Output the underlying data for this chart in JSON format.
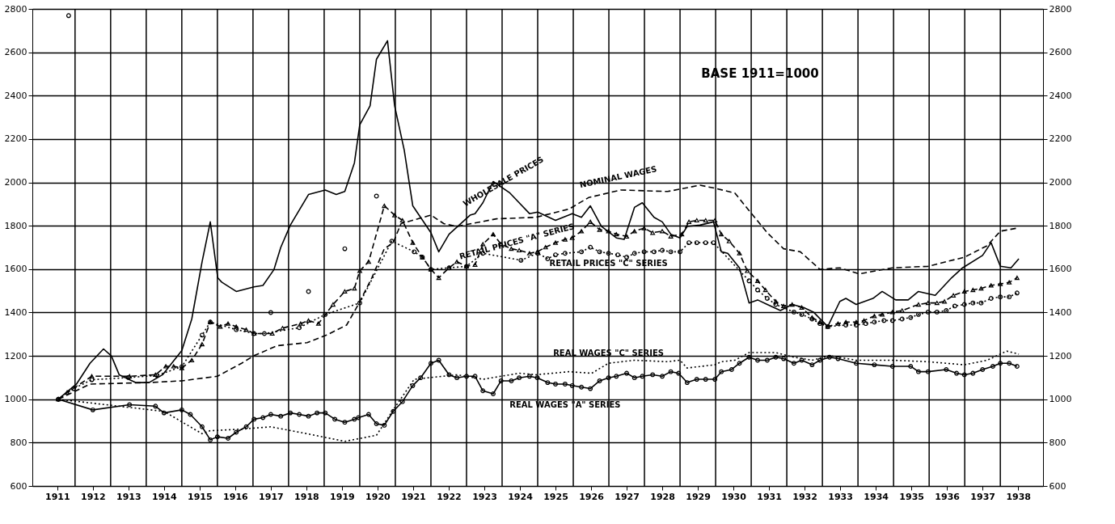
{
  "chart_data": {
    "type": "line",
    "xlim": [
      1910.8,
      1939.2
    ],
    "xticks": [
      {
        "value": 1911.5,
        "label": "1911"
      },
      {
        "value": 1912.5,
        "label": "1912"
      },
      {
        "value": 1913.5,
        "label": "1913"
      },
      {
        "value": 1914.5,
        "label": "1914"
      },
      {
        "value": 1915.5,
        "label": "1915"
      },
      {
        "value": 1916.5,
        "label": "1916"
      },
      {
        "value": 1917.5,
        "label": "1917"
      },
      {
        "value": 1918.5,
        "label": "1918"
      },
      {
        "value": 1919.5,
        "label": "1919"
      },
      {
        "value": 1920.5,
        "label": "1920"
      },
      {
        "value": 1921.5,
        "label": "1921"
      },
      {
        "value": 1922.5,
        "label": "1922"
      },
      {
        "value": 1923.5,
        "label": "1923"
      },
      {
        "value": 1924.5,
        "label": "1924"
      },
      {
        "value": 1925.5,
        "label": "1925"
      },
      {
        "value": 1926.5,
        "label": "1926"
      },
      {
        "value": 1927.5,
        "label": "1927"
      },
      {
        "value": 1928.5,
        "label": "1928"
      },
      {
        "value": 1929.5,
        "label": "1929"
      },
      {
        "value": 1930.5,
        "label": "1930"
      },
      {
        "value": 1931.5,
        "label": "1931"
      },
      {
        "value": 1932.5,
        "label": "1932"
      },
      {
        "value": 1933.5,
        "label": "1933"
      },
      {
        "value": 1934.5,
        "label": "1934"
      },
      {
        "value": 1935.5,
        "label": "1935"
      },
      {
        "value": 1936.5,
        "label": "1936"
      },
      {
        "value": 1937.5,
        "label": "1937"
      },
      {
        "value": 1938.5,
        "label": "1938"
      },
      {
        "value": 1912,
        "label": null
      },
      {
        "value": 1913,
        "label": null
      },
      {
        "value": 1914,
        "label": null
      },
      {
        "value": 1915,
        "label": null
      },
      {
        "value": 1916,
        "label": null
      },
      {
        "value": 1917,
        "label": null
      },
      {
        "value": 1918,
        "label": null
      },
      {
        "value": 1919,
        "label": null
      },
      {
        "value": 1920,
        "label": null
      },
      {
        "value": 1921,
        "label": null
      },
      {
        "value": 1922,
        "label": null
      },
      {
        "value": 1923,
        "label": null
      },
      {
        "value": 1924,
        "label": null
      },
      {
        "value": 1925,
        "label": null
      },
      {
        "value": 1926,
        "label": null
      },
      {
        "value": 1927,
        "label": null
      },
      {
        "value": 1928,
        "label": null
      },
      {
        "value": 1929,
        "label": null
      },
      {
        "value": 1930,
        "label": null
      },
      {
        "value": 1931,
        "label": null
      },
      {
        "value": 1932,
        "label": null
      },
      {
        "value": 1933,
        "label": null
      },
      {
        "value": 1934,
        "label": null
      },
      {
        "value": 1935,
        "label": null
      },
      {
        "value": 1936,
        "label": null
      },
      {
        "value": 1937,
        "label": null
      },
      {
        "value": 1938,
        "label": null
      }
    ],
    "ylim": [
      600,
      2800
    ],
    "yticks": [
      600,
      800,
      1000,
      1200,
      1400,
      1600,
      1800,
      2000,
      2200,
      2400,
      2600,
      2800
    ],
    "y2lim": [
      600,
      2800
    ],
    "y2ticks": [
      600,
      800,
      1000,
      1200,
      1400,
      1600,
      1800,
      2000,
      2200,
      2400,
      2600,
      2800
    ],
    "grid": true,
    "annotations": [
      "BASE 1911=1000"
    ],
    "series": [
      {
        "name": "WHOLESALE PRICES",
        "color": "#000000",
        "line_style": "solid",
        "marker": "none",
        "x": [
          1911.53,
          1912.04,
          1912.42,
          1912.8,
          1913.02,
          1913.24,
          1913.7,
          1914.08,
          1914.46,
          1915.0,
          1915.28,
          1915.57,
          1915.8,
          1916.01,
          1916.12,
          1916.53,
          1917.03,
          1917.28,
          1917.59,
          1917.78,
          1918.05,
          1918.56,
          1919.03,
          1919.34,
          1919.58,
          1919.85,
          1920.0,
          1920.29,
          1920.47,
          1920.78,
          1920.98,
          1921.25,
          1921.49,
          1922.0,
          1922.22,
          1922.51,
          1923.1,
          1923.24,
          1923.46,
          1923.75,
          1924.22,
          1924.77,
          1925.0,
          1925.5,
          1925.97,
          1926.23,
          1926.48,
          1926.79,
          1927.21,
          1927.43,
          1927.72,
          1927.94,
          1928.27,
          1928.5,
          1928.74,
          1929.0,
          1929.2,
          1929.56,
          1929.94,
          1930.16,
          1930.34,
          1930.67,
          1930.94,
          1931.18,
          1931.45,
          1931.82,
          1932.15,
          1932.47,
          1932.75,
          1933.15,
          1933.49,
          1933.66,
          1933.95,
          1934.42,
          1934.68,
          1935.06,
          1935.41,
          1935.7,
          1936.17,
          1936.63,
          1936.94,
          1937.5,
          1937.74,
          1938.0,
          1938.3,
          1938.52
        ],
        "values": [
          1000,
          1070,
          1166,
          1232,
          1200,
          1113,
          1077,
          1077,
          1113,
          1225,
          1370,
          1634,
          1818,
          1560,
          1540,
          1497,
          1518,
          1525,
          1598,
          1700,
          1803,
          1944,
          1965,
          1944,
          1958,
          2090,
          2265,
          2353,
          2568,
          2653,
          2353,
          2149,
          1892,
          1768,
          1680,
          1761,
          1849,
          1856,
          1906,
          2004,
          1951,
          1856,
          1863,
          1825,
          1856,
          1839,
          1892,
          1797,
          1744,
          1737,
          1885,
          1906,
          1839,
          1818,
          1761,
          1744,
          1797,
          1803,
          1818,
          1680,
          1673,
          1606,
          1444,
          1458,
          1437,
          1409,
          1437,
          1423,
          1402,
          1335,
          1451,
          1465,
          1437,
          1465,
          1497,
          1458,
          1458,
          1497,
          1479,
          1560,
          1606,
          1663,
          1722,
          1613,
          1606,
          1648
        ]
      },
      {
        "name": "NOMINAL WAGES",
        "color": "#000000",
        "line_style": "dashed",
        "marker": "none",
        "x": [
          1911.53,
          1912.42,
          1914.08,
          1915.0,
          1916.0,
          1916.68,
          1917.03,
          1917.68,
          1918.52,
          1919.07,
          1919.63,
          1919.96,
          1920.34,
          1920.69,
          1920.94,
          1921.16,
          1922.0,
          1922.36,
          1922.73,
          1923.84,
          1924.95,
          1925.88,
          1926.43,
          1927.34,
          1928.65,
          1929.56,
          1929.98,
          1930.54,
          1930.94,
          1931.45,
          1931.91,
          1932.38,
          1932.93,
          1933.49,
          1934.04,
          1934.97,
          1935.97,
          1936.99,
          1937.63,
          1938.0,
          1938.47
        ],
        "values": [
          1000,
          1070,
          1077,
          1085,
          1106,
          1166,
          1201,
          1247,
          1261,
          1296,
          1342,
          1437,
          1560,
          1694,
          1722,
          1810,
          1849,
          1810,
          1797,
          1832,
          1839,
          1877,
          1930,
          1965,
          1958,
          1987,
          1973,
          1951,
          1870,
          1768,
          1694,
          1680,
          1599,
          1606,
          1578,
          1606,
          1613,
          1655,
          1708,
          1775,
          1789
        ]
      },
      {
        "name": "RETAIL PRICES \"A\" SERIES",
        "color": "#000000",
        "line_style": "dashed",
        "marker": "triangle",
        "x": [
          1911.53,
          1911.78,
          1912.47,
          1913.53,
          1914.26,
          1914.55,
          1914.77,
          1915.0,
          1915.28,
          1915.57,
          1915.8,
          1916.08,
          1916.3,
          1916.53,
          1916.81,
          1917.03,
          1917.54,
          1917.83,
          1918.34,
          1918.56,
          1918.84,
          1919.25,
          1919.58,
          1919.85,
          1920.0,
          1920.25,
          1920.69,
          1920.98,
          1921.2,
          1921.49,
          1921.76,
          1922.0,
          1922.22,
          1922.51,
          1922.73,
          1923.0,
          1923.24,
          1923.46,
          1923.75,
          1923.97,
          1924.26,
          1924.48,
          1924.77,
          1924.99,
          1925.22,
          1925.5,
          1925.77,
          1925.97,
          1926.23,
          1926.48,
          1926.74,
          1926.99,
          1927.21,
          1927.5,
          1927.72,
          1927.99,
          1928.23,
          1928.5,
          1928.74,
          1929.05,
          1929.25,
          1929.47,
          1929.72,
          1929.98,
          1930.16,
          1930.38,
          1930.67,
          1930.89,
          1931.18,
          1931.4,
          1931.69,
          1931.91,
          1932.15,
          1932.42,
          1932.71,
          1932.93,
          1933.15,
          1933.44,
          1933.66,
          1933.95,
          1934.17,
          1934.46,
          1934.68,
          1934.97,
          1935.24,
          1935.7,
          1935.97,
          1936.22,
          1936.43,
          1936.68,
          1936.99,
          1937.23,
          1937.46,
          1937.74,
          1938.0,
          1938.25,
          1938.47
        ],
        "values": [
          1000,
          1032,
          1106,
          1106,
          1113,
          1152,
          1152,
          1144,
          1180,
          1254,
          1356,
          1335,
          1349,
          1335,
          1321,
          1303,
          1303,
          1328,
          1349,
          1363,
          1349,
          1437,
          1497,
          1511,
          1592,
          1634,
          1892,
          1849,
          1825,
          1722,
          1655,
          1599,
          1560,
          1606,
          1634,
          1613,
          1620,
          1715,
          1761,
          1715,
          1694,
          1687,
          1673,
          1680,
          1701,
          1722,
          1737,
          1744,
          1775,
          1818,
          1782,
          1775,
          1761,
          1751,
          1775,
          1789,
          1768,
          1775,
          1751,
          1761,
          1818,
          1825,
          1825,
          1825,
          1761,
          1729,
          1673,
          1592,
          1546,
          1504,
          1451,
          1430,
          1437,
          1423,
          1377,
          1356,
          1335,
          1349,
          1356,
          1356,
          1363,
          1384,
          1391,
          1402,
          1409,
          1437,
          1444,
          1444,
          1451,
          1479,
          1497,
          1504,
          1511,
          1525,
          1532,
          1539,
          1560
        ]
      },
      {
        "name": "RETAIL PRICES \"C\" SERIES",
        "color": "#000000",
        "line_style": "dotted",
        "marker": "circle",
        "x": [
          1911.53,
          1911.96,
          1912.47,
          1913.5,
          1914.3,
          1915.0,
          1915.57,
          1915.8,
          1916.53,
          1917.03,
          1917.32,
          1918.3,
          1919.03,
          1920.0,
          1920.9,
          1921.53,
          1921.76,
          1922.0,
          1922.51,
          1923.0,
          1923.46,
          1924.53,
          1925.0,
          1925.28,
          1925.5,
          1925.77,
          1926.23,
          1926.48,
          1926.74,
          1926.99,
          1927.25,
          1927.5,
          1927.72,
          1927.99,
          1928.27,
          1928.5,
          1928.74,
          1929.0,
          1929.25,
          1929.47,
          1929.72,
          1929.94,
          1930.94,
          1931.18,
          1931.45,
          1931.69,
          1932.2,
          1932.42,
          1932.71,
          1932.93,
          1933.15,
          1933.66,
          1933.95,
          1934.22,
          1934.46,
          1934.73,
          1934.97,
          1935.24,
          1935.48,
          1935.7,
          1935.97,
          1936.22,
          1936.48,
          1936.72,
          1936.99,
          1937.23,
          1937.46,
          1937.74,
          1938.0,
          1938.25,
          1938.47
        ],
        "values": [
          1000,
          1049,
          1090,
          1100,
          1110,
          1150,
          1296,
          1356,
          1321,
          1303,
          1303,
          1330,
          1391,
          1444,
          1729,
          1680,
          1655,
          1599,
          1606,
          1613,
          1673,
          1641,
          1673,
          1648,
          1666,
          1673,
          1680,
          1701,
          1680,
          1673,
          1666,
          1655,
          1673,
          1680,
          1680,
          1687,
          1680,
          1680,
          1722,
          1722,
          1722,
          1722,
          1546,
          1504,
          1465,
          1437,
          1402,
          1391,
          1370,
          1349,
          1335,
          1342,
          1342,
          1349,
          1356,
          1363,
          1363,
          1370,
          1377,
          1391,
          1402,
          1402,
          1409,
          1430,
          1437,
          1444,
          1444,
          1465,
          1472,
          1472,
          1490
        ]
      },
      {
        "name": "REAL WAGES \"C\" SERIES",
        "color": "#000000",
        "line_style": "dotted",
        "marker": "none",
        "x": [
          1911.53,
          1914.5,
          1915.57,
          1915.8,
          1916.68,
          1917.5,
          1918.52,
          1919.58,
          1920.47,
          1920.94,
          1921.53,
          1922.73,
          1923.46,
          1924.48,
          1924.95,
          1925.88,
          1926.52,
          1926.99,
          1927.72,
          1928.65,
          1929.0,
          1929.2,
          1929.98,
          1930.16,
          1930.54,
          1930.94,
          1931.69,
          1932.2,
          1932.71,
          1933.2,
          1933.95,
          1934.97,
          1935.97,
          1936.99,
          1937.63,
          1938.18,
          1938.52
        ],
        "values": [
          1000,
          944,
          841,
          855,
          862,
          873,
          841,
          806,
          834,
          951,
          1092,
          1113,
          1092,
          1120,
          1113,
          1127,
          1120,
          1166,
          1180,
          1173,
          1180,
          1144,
          1159,
          1173,
          1180,
          1215,
          1215,
          1194,
          1180,
          1201,
          1180,
          1180,
          1173,
          1159,
          1180,
          1222,
          1208
        ]
      },
      {
        "name": "REAL WAGES \"A\" SERIES",
        "color": "#000000",
        "line_style": "solid",
        "marker": "circle",
        "x": [
          1911.53,
          1912.5,
          1913.53,
          1914.26,
          1914.5,
          1915.0,
          1915.24,
          1915.57,
          1915.8,
          1916.0,
          1916.3,
          1916.53,
          1916.81,
          1917.03,
          1917.28,
          1917.5,
          1917.78,
          1918.05,
          1918.3,
          1918.56,
          1918.8,
          1919.03,
          1919.3,
          1919.58,
          1919.85,
          1919.96,
          1920.25,
          1920.47,
          1920.69,
          1920.94,
          1921.2,
          1921.49,
          1921.71,
          1922.0,
          1922.22,
          1922.51,
          1922.73,
          1923.0,
          1923.24,
          1923.46,
          1923.75,
          1923.97,
          1924.26,
          1924.48,
          1924.77,
          1924.99,
          1925.28,
          1925.5,
          1925.77,
          1925.97,
          1926.23,
          1926.48,
          1926.74,
          1926.99,
          1927.21,
          1927.5,
          1927.72,
          1927.94,
          1928.23,
          1928.5,
          1928.74,
          1928.96,
          1929.2,
          1929.47,
          1929.72,
          1929.98,
          1930.16,
          1930.45,
          1930.67,
          1930.94,
          1931.18,
          1931.45,
          1931.69,
          1931.91,
          1932.2,
          1932.42,
          1932.71,
          1932.93,
          1933.2,
          1933.44,
          1933.95,
          1934.46,
          1934.97,
          1935.48,
          1935.7,
          1935.97,
          1936.48,
          1936.77,
          1936.99,
          1937.23,
          1937.5,
          1937.79,
          1938.0,
          1938.25,
          1938.47
        ],
        "values": [
          1000,
          951,
          975,
          968,
          937,
          951,
          930,
          873,
          813,
          827,
          820,
          848,
          873,
          908,
          915,
          930,
          922,
          937,
          930,
          922,
          937,
          937,
          908,
          894,
          908,
          915,
          930,
          887,
          880,
          944,
          989,
          1063,
          1099,
          1166,
          1180,
          1113,
          1099,
          1106,
          1106,
          1039,
          1025,
          1085,
          1085,
          1099,
          1106,
          1099,
          1077,
          1070,
          1070,
          1063,
          1056,
          1049,
          1085,
          1099,
          1106,
          1120,
          1099,
          1106,
          1113,
          1106,
          1127,
          1120,
          1077,
          1092,
          1092,
          1092,
          1127,
          1137,
          1166,
          1194,
          1180,
          1180,
          1194,
          1187,
          1166,
          1180,
          1159,
          1180,
          1194,
          1187,
          1166,
          1159,
          1152,
          1152,
          1127,
          1127,
          1137,
          1120,
          1113,
          1120,
          1137,
          1152,
          1166,
          1166,
          1152
        ]
      },
      {
        "type": "scatter",
        "color": "#000000",
        "marker": "circle",
        "x": [
          1911.82,
          1917.5,
          1918.56,
          1919.58,
          1920.47
        ],
        "values": [
          2769,
          1400,
          1497,
          1694,
          1937
        ]
      }
    ]
  }
}
